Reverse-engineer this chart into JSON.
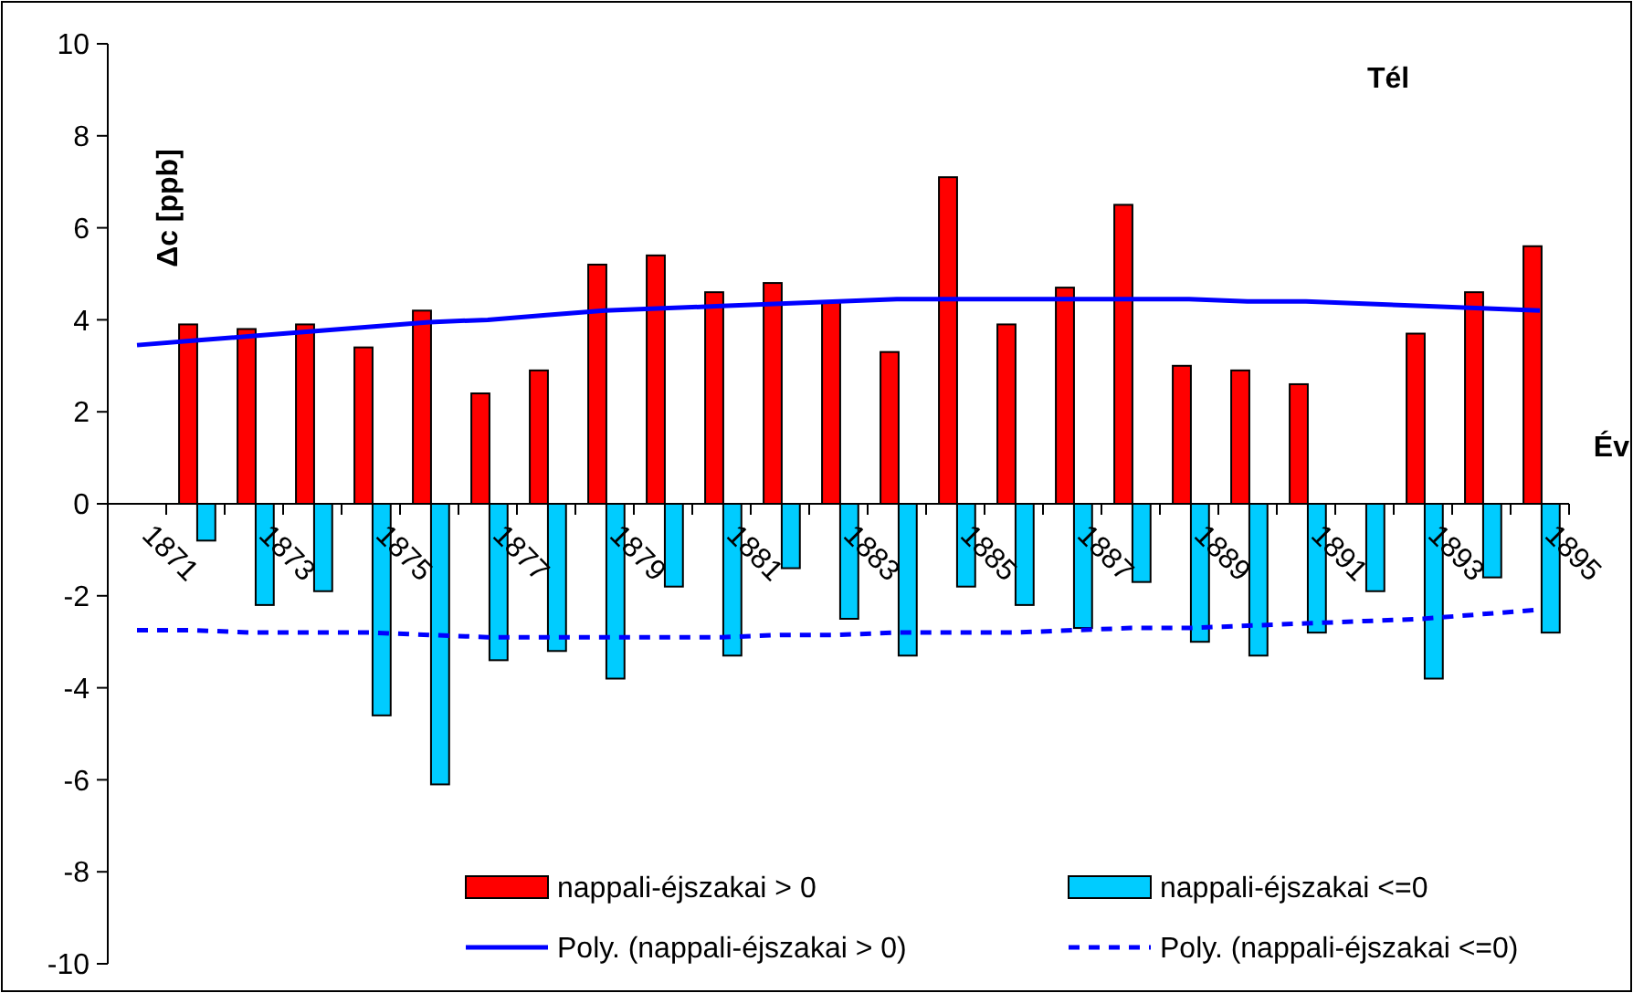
{
  "chart_data": {
    "type": "bar",
    "title": "Tél",
    "xlabel": "Év",
    "ylabel": "Δc [ppb]",
    "categories": [
      "1871",
      null,
      "1873",
      null,
      "1875",
      null,
      "1877",
      null,
      "1879",
      null,
      "1881",
      null,
      "1883",
      null,
      "1885",
      null,
      "1887",
      null,
      "1889",
      null,
      "1891",
      null,
      "1893",
      null,
      "1895"
    ],
    "series": [
      {
        "name": "nappali-éjszakai > 0",
        "color": "#ff0000",
        "values": [
          null,
          3.9,
          3.8,
          3.9,
          3.4,
          4.2,
          2.4,
          2.9,
          5.2,
          5.4,
          4.6,
          4.8,
          4.4,
          3.3,
          7.1,
          3.9,
          4.7,
          6.5,
          3.0,
          2.9,
          2.6,
          null,
          3.7,
          4.6,
          5.6
        ]
      },
      {
        "name": "nappali-éjszakai <=0",
        "color": "#00ccff",
        "values": [
          null,
          -0.8,
          -2.2,
          -1.9,
          -4.6,
          -6.1,
          -3.4,
          -3.2,
          -3.8,
          -1.8,
          -3.3,
          -1.4,
          -2.5,
          -3.3,
          -1.8,
          -2.2,
          -2.7,
          -1.7,
          -3.0,
          -3.3,
          -2.8,
          -1.9,
          -3.8,
          -1.6,
          -2.8
        ]
      },
      {
        "name": "Poly. (nappali-éjszakai > 0)",
        "type": "line",
        "line_style": "solid",
        "color": "#0000ff",
        "values": [
          3.45,
          3.55,
          3.65,
          3.75,
          3.85,
          3.95,
          4.0,
          4.1,
          4.2,
          4.25,
          4.3,
          4.35,
          4.4,
          4.45,
          4.45,
          4.45,
          4.45,
          4.45,
          4.45,
          4.4,
          4.4,
          4.35,
          4.3,
          4.25,
          4.2
        ]
      },
      {
        "name": "Poly. (nappali-éjszakai <=0)",
        "type": "line",
        "line_style": "dashed",
        "color": "#0000ff",
        "values": [
          -2.75,
          -2.75,
          -2.8,
          -2.8,
          -2.8,
          -2.85,
          -2.9,
          -2.9,
          -2.9,
          -2.9,
          -2.9,
          -2.85,
          -2.85,
          -2.8,
          -2.8,
          -2.8,
          -2.75,
          -2.7,
          -2.7,
          -2.65,
          -2.6,
          -2.55,
          -2.5,
          -2.4,
          -2.3
        ]
      }
    ],
    "ylim": [
      -10,
      10
    ],
    "yticks": [
      -10,
      -8,
      -6,
      -4,
      -2,
      0,
      2,
      4,
      6,
      8,
      10
    ],
    "grid": false,
    "legend": "bottom"
  }
}
